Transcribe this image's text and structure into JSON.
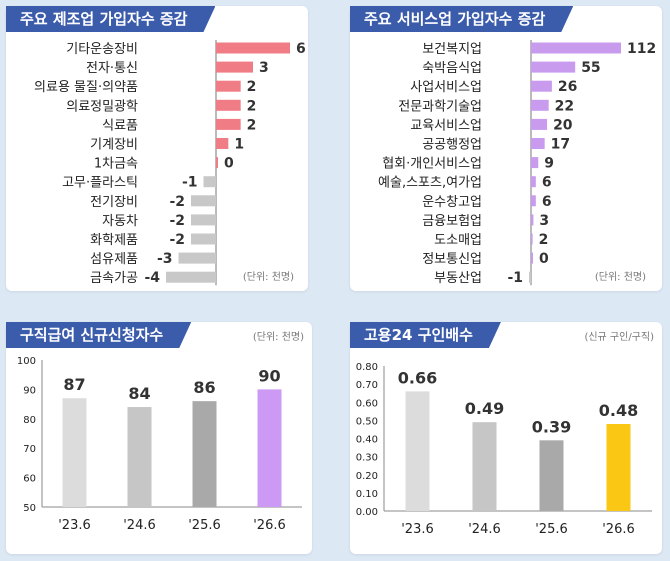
{
  "colors": {
    "title_bg": "#3b5bab",
    "manufacturing_bar": "#f07d85",
    "service_bar": "#c89bef",
    "negative_bar": "#c8c8c8",
    "highlight_bar": "#cc99f5",
    "gold_bar": "#f9c714",
    "grey_light": "#dcdcdc",
    "grey_mid": "#c6c6c6",
    "grey_dark": "#a9a9a9"
  },
  "panels": {
    "manufacturing": {
      "title": "주요 제조업 가입자수 증감",
      "unit": "(단위: 천명)"
    },
    "services": {
      "title": "주요 서비스업 가입자수 증감",
      "unit": "(단위: 천명)"
    },
    "job_benefit": {
      "title": "구직급여 신규신청자수",
      "unit": "(단위: 천명)"
    },
    "job_ratio": {
      "title": "고용24 구인배수",
      "unit": "(신규 구인/구직)"
    }
  },
  "chart_data": [
    {
      "type": "bar",
      "orientation": "horizontal",
      "categories": [
        "기타운송장비",
        "전자·통신",
        "의료용 물질·의약품",
        "의료정밀광학",
        "식료품",
        "기계장비",
        "1차금속",
        "고무·플라스틱",
        "전기장비",
        "자동차",
        "화학제품",
        "섬유제품",
        "금속가공"
      ],
      "values": [
        6,
        3,
        2,
        2,
        2,
        1,
        0,
        -1,
        -2,
        -2,
        -2,
        -3,
        -4
      ],
      "data_labels": [
        "6",
        "3",
        "2",
        "2",
        "2",
        "1",
        "0",
        "-1",
        "-2",
        "-2",
        "-2",
        "-3",
        "-4"
      ]
    },
    {
      "type": "bar",
      "orientation": "horizontal",
      "categories": [
        "보건복지업",
        "숙박음식업",
        "사업서비스업",
        "전문과학기술업",
        "교육서비스업",
        "공공행정업",
        "협회·개인서비스업",
        "예술,스포츠,여가업",
        "운수창고업",
        "금융보험업",
        "도소매업",
        "정보통신업",
        "부동산업"
      ],
      "values": [
        112,
        55,
        26,
        22,
        20,
        17,
        9,
        6,
        6,
        3,
        2,
        0,
        -1
      ],
      "data_labels": [
        "112",
        "55",
        "26",
        "22",
        "20",
        "17",
        "9",
        "6",
        "6",
        "3",
        "2",
        "0",
        "-1"
      ]
    },
    {
      "type": "bar",
      "categories": [
        "'23.6",
        "'24.6",
        "'25.6",
        "'26.6"
      ],
      "values": [
        87,
        84,
        86,
        90
      ],
      "data_labels": [
        "87",
        "84",
        "86",
        "90"
      ],
      "ylim": [
        50,
        100
      ],
      "yticks": [
        "50",
        "60",
        "70",
        "80",
        "90",
        "100"
      ],
      "colors": [
        "#dcdcdc",
        "#c6c6c6",
        "#a9a9a9",
        "#cc99f5"
      ]
    },
    {
      "type": "bar",
      "categories": [
        "'23.6",
        "'24.6",
        "'25.6",
        "'26.6"
      ],
      "values": [
        0.66,
        0.49,
        0.39,
        0.48
      ],
      "data_labels": [
        "0.66",
        "0.49",
        "0.39",
        "0.48"
      ],
      "ylim": [
        0,
        0.8
      ],
      "yticks": [
        "0.00",
        "0.10",
        "0.20",
        "0.30",
        "0.40",
        "0.50",
        "0.60",
        "0.70",
        "0.80"
      ],
      "colors": [
        "#dcdcdc",
        "#c6c6c6",
        "#a9a9a9",
        "#f9c714"
      ]
    }
  ]
}
